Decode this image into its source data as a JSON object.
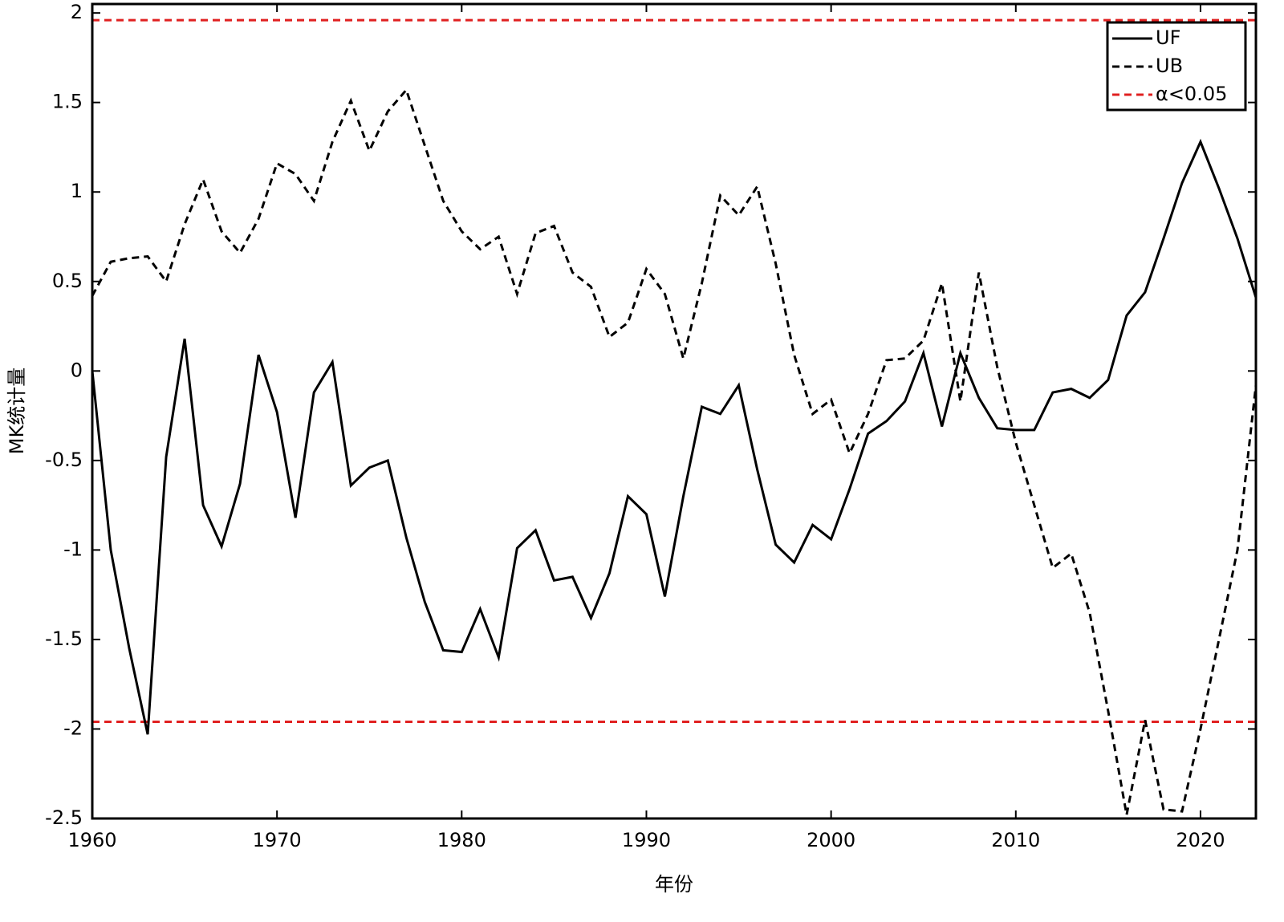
{
  "chart_data": {
    "type": "line",
    "xlabel": "年份",
    "ylabel": "MK统计量",
    "x": [
      1960,
      1961,
      1962,
      1963,
      1964,
      1965,
      1966,
      1967,
      1968,
      1969,
      1970,
      1971,
      1972,
      1973,
      1974,
      1975,
      1976,
      1977,
      1978,
      1979,
      1980,
      1981,
      1982,
      1983,
      1984,
      1985,
      1986,
      1987,
      1988,
      1989,
      1990,
      1991,
      1992,
      1993,
      1994,
      1995,
      1996,
      1997,
      1998,
      1999,
      2000,
      2001,
      2002,
      2003,
      2004,
      2005,
      2006,
      2007,
      2008,
      2009,
      2010,
      2011,
      2012,
      2013,
      2014,
      2015,
      2016,
      2017,
      2018,
      2019,
      2020,
      2021,
      2022,
      2023
    ],
    "series": [
      {
        "name": "UF",
        "color": "#000000",
        "dash": "solid",
        "values": [
          0,
          -1.0,
          -1.55,
          -2.03,
          -0.48,
          0.18,
          -0.75,
          -0.98,
          -0.63,
          0.09,
          -0.23,
          -0.82,
          -0.12,
          0.05,
          -0.64,
          -0.54,
          -0.5,
          -0.93,
          -1.29,
          -1.56,
          -1.57,
          -1.33,
          -1.6,
          -0.99,
          -0.89,
          -1.17,
          -1.15,
          -1.38,
          -1.13,
          -0.7,
          -0.8,
          -1.26,
          -0.7,
          -0.2,
          -0.24,
          -0.08,
          -0.55,
          -0.97,
          -1.07,
          -0.86,
          -0.94,
          -0.66,
          -0.35,
          -0.28,
          -0.17,
          0.1,
          -0.31,
          0.1,
          -0.15,
          -0.32,
          -0.33,
          -0.33,
          -0.12,
          -0.1,
          -0.15,
          -0.05,
          0.31,
          0.44,
          0.74,
          1.05,
          1.28,
          1.02,
          0.74,
          0.41
        ]
      },
      {
        "name": "UB",
        "color": "#000000",
        "dash": "dashed",
        "values": [
          0.42,
          0.61,
          0.63,
          0.64,
          0.5,
          0.82,
          1.07,
          0.78,
          0.66,
          0.85,
          1.16,
          1.1,
          0.95,
          1.28,
          1.51,
          1.23,
          1.45,
          1.57,
          1.26,
          0.95,
          0.78,
          0.68,
          0.75,
          0.43,
          0.77,
          0.81,
          0.55,
          0.47,
          0.19,
          0.27,
          0.57,
          0.43,
          0.07,
          0.49,
          0.98,
          0.87,
          1.03,
          0.6,
          0.09,
          -0.24,
          -0.16,
          -0.46,
          -0.24,
          0.06,
          0.07,
          0.17,
          0.49,
          -0.17,
          0.55,
          0.02,
          -0.4,
          -0.75,
          -1.1,
          -1.02,
          -1.35,
          -1.9,
          -2.48,
          -1.95,
          -2.45,
          -2.46,
          -2.0,
          -1.5,
          -1.0,
          -0.08
        ]
      }
    ],
    "reference_lines": {
      "name": "α<0.05",
      "color": "#e02020",
      "values": [
        1.96,
        -1.96
      ]
    },
    "xlim": [
      1960,
      2023
    ],
    "xticks": [
      1960,
      1970,
      1980,
      1990,
      2000,
      2010,
      2020
    ],
    "ylim": [
      -2.5,
      2.05
    ],
    "yticks": [
      2,
      1.5,
      1,
      0.5,
      0,
      -0.5,
      -1,
      -1.5,
      -2,
      -2.5
    ],
    "grid": false,
    "legend": "upper right"
  }
}
